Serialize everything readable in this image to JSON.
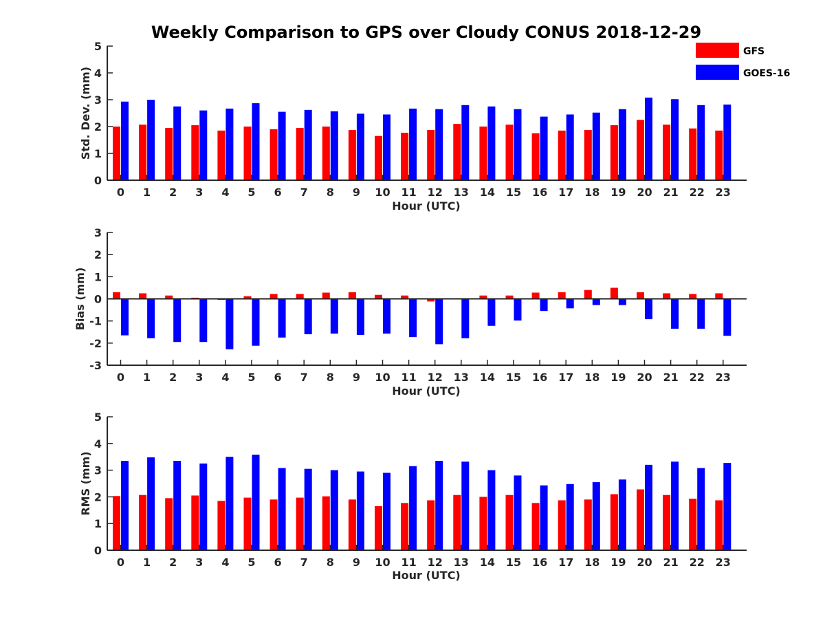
{
  "figure": {
    "title": "Weekly Comparison to GPS over Cloudy CONUS 2018-12-29"
  },
  "legend": {
    "placement": "top-right",
    "entries": [
      {
        "name": "GFS",
        "color": "#ff0000"
      },
      {
        "name": "GOES-16",
        "color": "#0000ff"
      }
    ]
  },
  "chart_data": [
    {
      "type": "bar",
      "ylabel": "Std. Dev. (mm)",
      "xlabel": "Hour (UTC)",
      "ylim": [
        0,
        5
      ],
      "yticks": [
        0,
        1,
        2,
        3,
        4,
        5
      ],
      "categories": [
        "0",
        "1",
        "2",
        "3",
        "4",
        "5",
        "6",
        "7",
        "8",
        "9",
        "10",
        "11",
        "12",
        "13",
        "14",
        "15",
        "16",
        "17",
        "18",
        "19",
        "20",
        "21",
        "22",
        "23"
      ],
      "series": [
        {
          "name": "GFS",
          "color": "#ff0000",
          "values": [
            2.0,
            2.07,
            1.95,
            2.05,
            1.85,
            2.0,
            1.9,
            1.95,
            2.0,
            1.87,
            1.65,
            1.77,
            1.87,
            2.1,
            2.0,
            2.07,
            1.75,
            1.85,
            1.87,
            2.05,
            2.25,
            2.07,
            1.93,
            1.85
          ]
        },
        {
          "name": "GOES-16",
          "color": "#0000ff",
          "values": [
            2.93,
            3.0,
            2.75,
            2.6,
            2.67,
            2.87,
            2.55,
            2.62,
            2.57,
            2.48,
            2.45,
            2.67,
            2.65,
            2.8,
            2.75,
            2.65,
            2.37,
            2.45,
            2.52,
            2.65,
            3.08,
            3.02,
            2.8,
            2.82
          ]
        }
      ]
    },
    {
      "type": "bar",
      "ylabel": "Bias (mm)",
      "xlabel": "Hour (UTC)",
      "ylim": [
        -3,
        3
      ],
      "yticks": [
        -3,
        -2,
        -1,
        0,
        1,
        2,
        3
      ],
      "categories": [
        "0",
        "1",
        "2",
        "3",
        "4",
        "5",
        "6",
        "7",
        "8",
        "9",
        "10",
        "11",
        "12",
        "13",
        "14",
        "15",
        "16",
        "17",
        "18",
        "19",
        "20",
        "21",
        "22",
        "23"
      ],
      "series": [
        {
          "name": "GFS",
          "color": "#ff0000",
          "values": [
            0.3,
            0.25,
            0.15,
            0.05,
            -0.05,
            0.12,
            0.22,
            0.22,
            0.28,
            0.3,
            0.18,
            0.15,
            -0.12,
            -0.03,
            0.15,
            0.15,
            0.28,
            0.3,
            0.4,
            0.5,
            0.3,
            0.25,
            0.22,
            0.25
          ]
        },
        {
          "name": "GOES-16",
          "color": "#0000ff",
          "values": [
            -1.65,
            -1.78,
            -1.95,
            -1.95,
            -2.28,
            -2.12,
            -1.75,
            -1.6,
            -1.57,
            -1.63,
            -1.57,
            -1.73,
            -2.05,
            -1.78,
            -1.22,
            -0.98,
            -0.55,
            -0.43,
            -0.28,
            -0.28,
            -0.92,
            -1.35,
            -1.35,
            -1.67
          ]
        }
      ]
    },
    {
      "type": "bar",
      "ylabel": "RMS (mm)",
      "xlabel": "Hour (UTC)",
      "ylim": [
        0,
        5
      ],
      "yticks": [
        0,
        1,
        2,
        3,
        4,
        5
      ],
      "categories": [
        "0",
        "1",
        "2",
        "3",
        "4",
        "5",
        "6",
        "7",
        "8",
        "9",
        "10",
        "11",
        "12",
        "13",
        "14",
        "15",
        "16",
        "17",
        "18",
        "19",
        "20",
        "21",
        "22",
        "23"
      ],
      "series": [
        {
          "name": "GFS",
          "color": "#ff0000",
          "values": [
            2.03,
            2.07,
            1.95,
            2.05,
            1.85,
            1.97,
            1.9,
            1.97,
            2.02,
            1.9,
            1.65,
            1.77,
            1.87,
            2.07,
            2.0,
            2.07,
            1.77,
            1.87,
            1.9,
            2.1,
            2.28,
            2.07,
            1.93,
            1.87
          ]
        },
        {
          "name": "GOES-16",
          "color": "#0000ff",
          "values": [
            3.35,
            3.48,
            3.35,
            3.25,
            3.5,
            3.58,
            3.08,
            3.05,
            3.0,
            2.95,
            2.9,
            3.15,
            3.35,
            3.32,
            3.0,
            2.8,
            2.43,
            2.48,
            2.55,
            2.65,
            3.2,
            3.32,
            3.08,
            3.27
          ]
        }
      ]
    }
  ]
}
